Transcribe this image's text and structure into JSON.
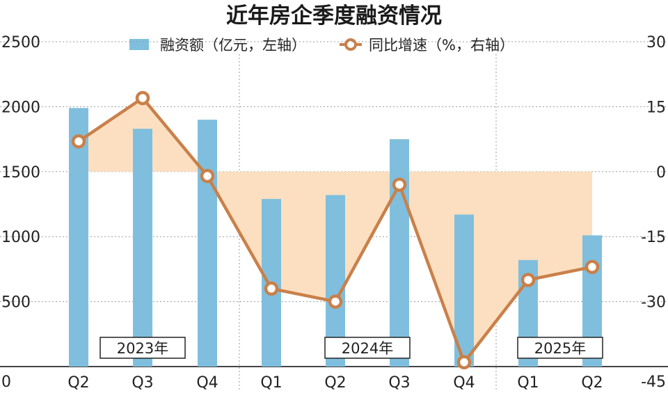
{
  "chart_data": {
    "type": "bar+line",
    "title": "近年房企季度融资情况",
    "categories": [
      "Q2",
      "Q3",
      "Q4",
      "Q1",
      "Q2",
      "Q3",
      "Q4",
      "Q1",
      "Q2"
    ],
    "years": [
      "2023年",
      "2024年",
      "2025年"
    ],
    "series": [
      {
        "name": "融资额（亿元，左轴）",
        "kind": "bar",
        "axis": "left",
        "values": [
          1990,
          1830,
          1900,
          1290,
          1320,
          1750,
          1170,
          820,
          1010
        ]
      },
      {
        "name": "同比增速（%，右轴）",
        "kind": "line",
        "axis": "right",
        "values": [
          7,
          17,
          -1,
          -27,
          -30,
          -3,
          -44,
          -25,
          -22
        ]
      }
    ],
    "y_left": {
      "ylim": [
        0,
        2500
      ],
      "ticks": [
        "2500",
        "2000",
        "1500",
        "1000",
        "500",
        "0"
      ]
    },
    "y_right": {
      "ylim": [
        -45,
        30
      ],
      "ticks": [
        "30",
        "15",
        "0",
        "-15",
        "-30",
        "-45"
      ]
    },
    "grid": true,
    "legend": "top",
    "colors": {
      "bar": "#7fbfdd",
      "line": "#c9804a",
      "fill": "#fbdfc0",
      "grid": "#9a9a9a"
    }
  }
}
